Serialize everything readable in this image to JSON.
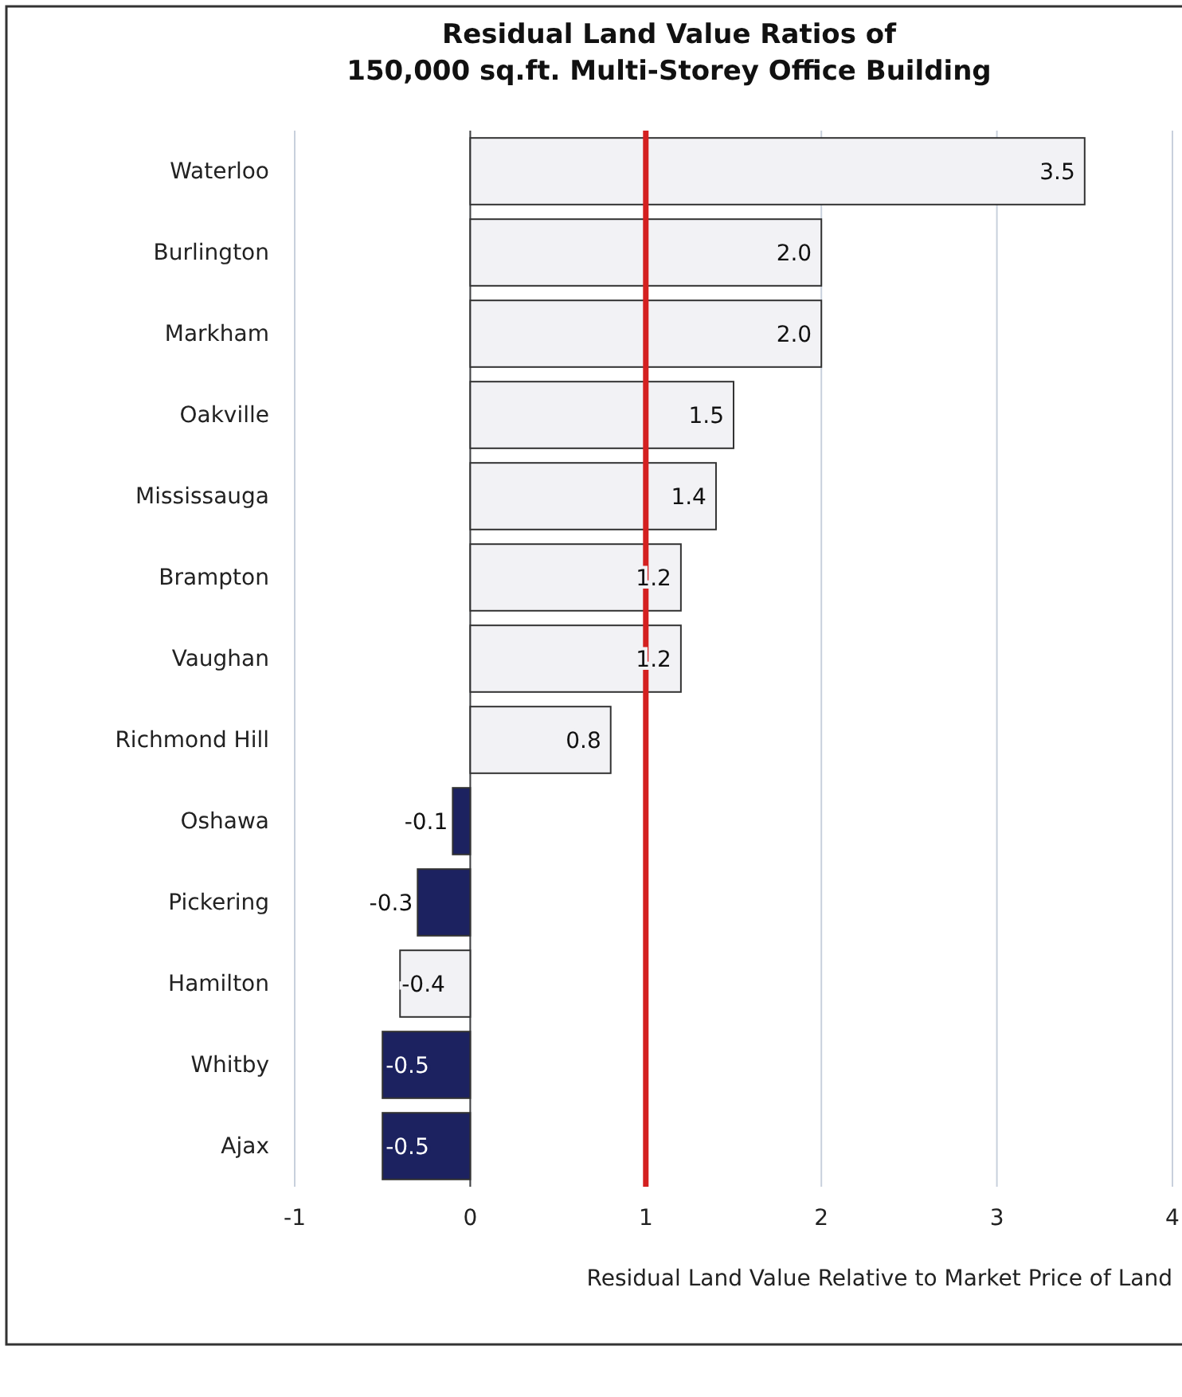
{
  "chart_data": {
    "type": "bar",
    "orientation": "horizontal",
    "title": "Residual Land Value Ratios of\n150,000 sq.ft. Multi-Storey Office Building",
    "xlabel": "Residual Land Value Relative to Market Price of Land",
    "categories": [
      "Waterloo",
      "Burlington",
      "Markham",
      "Oakville",
      "Mississauga",
      "Brampton",
      "Vaughan",
      "Richmond Hill",
      "Oshawa",
      "Pickering",
      "Hamilton",
      "Whitby",
      "Ajax"
    ],
    "values": [
      3.5,
      2.0,
      2.0,
      1.5,
      1.4,
      1.2,
      1.2,
      0.8,
      -0.1,
      -0.3,
      -0.4,
      -0.5,
      -0.5
    ],
    "value_labels": [
      "3.5",
      "2.0",
      "2.0",
      "1.5",
      "1.4",
      "1.2",
      "1.2",
      "0.8",
      "-0.1",
      "-0.3",
      "-0.4",
      "-0.5",
      "-0.5"
    ],
    "colors": [
      "#f2f2f5",
      "#f2f2f5",
      "#f2f2f5",
      "#f2f2f5",
      "#f2f2f5",
      "#f2f2f5",
      "#f2f2f5",
      "#f2f2f5",
      "#1c2260",
      "#1c2260",
      "#f2f2f5",
      "#1c2260",
      "#1c2260"
    ],
    "xlim": [
      -1,
      4
    ],
    "xticks": [
      -1,
      0,
      1,
      2,
      3,
      4
    ],
    "grid": "x",
    "ref_lines": [
      {
        "axis": "x",
        "value": 1,
        "color": "#d42020"
      }
    ]
  }
}
